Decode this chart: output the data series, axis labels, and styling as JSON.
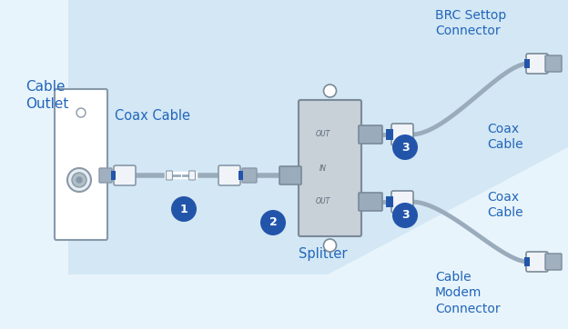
{
  "bg_color": "#d8eaf5",
  "bg_color2": "#e8f4fb",
  "text_color": "#2266bb",
  "blue_dark": "#2255aa",
  "slategray": "#8899aa",
  "steel": "#8899aa",
  "offwhite": "#f0f4f8",
  "lgray": "#aabbcc",
  "component_gray": "#c8d0d8",
  "white": "#ffffff",
  "labels": {
    "cable_outlet": "Cable\nOutlet",
    "coax_cable": "Coax Cable",
    "splitter": "Splitter",
    "brc_settop": "BRC Settop\nConnector",
    "coax_upper": "Coax\nCable",
    "coax_lower": "Coax\nCable",
    "cable_modem": "Cable\nModem\nConnector"
  },
  "fig_w": 6.24,
  "fig_h": 3.62,
  "dpi": 100
}
